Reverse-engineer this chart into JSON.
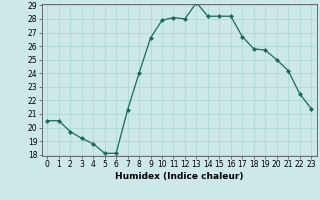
{
  "x": [
    0,
    1,
    2,
    3,
    4,
    5,
    6,
    7,
    8,
    9,
    10,
    11,
    12,
    13,
    14,
    15,
    16,
    17,
    18,
    19,
    20,
    21,
    22,
    23
  ],
  "y": [
    20.5,
    20.5,
    19.7,
    19.2,
    18.8,
    18.1,
    18.1,
    21.3,
    24.0,
    26.6,
    27.9,
    28.1,
    28.0,
    29.2,
    28.2,
    28.2,
    28.2,
    26.7,
    25.8,
    25.7,
    25.0,
    24.2,
    22.5,
    21.4
  ],
  "line_color": "#1a6b5a",
  "marker": "D",
  "marker_size": 2.0,
  "bg_color": "#cce8e8",
  "grid_color": "#aad4d4",
  "xlabel": "Humidex (Indice chaleur)",
  "ylim": [
    18,
    29
  ],
  "xlim": [
    -0.5,
    23.5
  ],
  "yticks": [
    18,
    19,
    20,
    21,
    22,
    23,
    24,
    25,
    26,
    27,
    28,
    29
  ],
  "xticks": [
    0,
    1,
    2,
    3,
    4,
    5,
    6,
    7,
    8,
    9,
    10,
    11,
    12,
    13,
    14,
    15,
    16,
    17,
    18,
    19,
    20,
    21,
    22,
    23
  ],
  "tick_fontsize": 5.5,
  "label_fontsize": 6.5
}
